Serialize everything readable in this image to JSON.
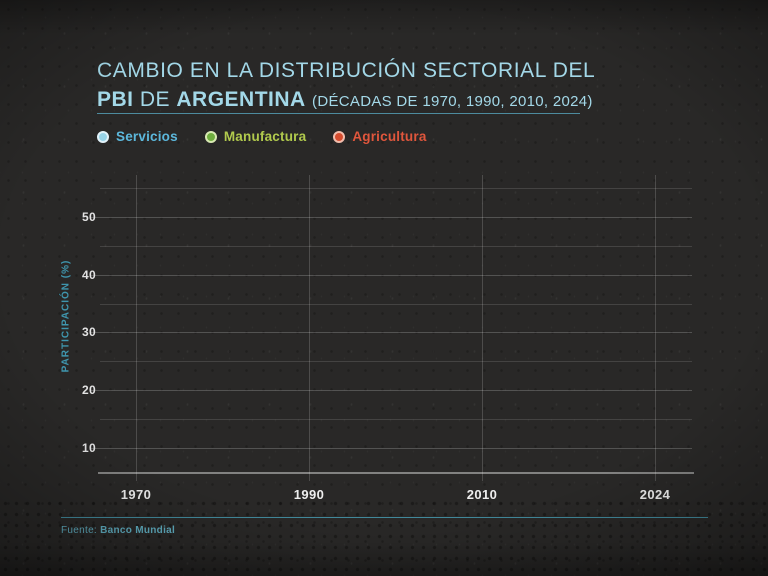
{
  "page": {
    "background": "#292827"
  },
  "title": {
    "line1": "CAMBIO EN LA DISTRIBUCIÓN SECTORIAL DEL",
    "bold1": "PBI",
    "mid": " DE ",
    "bold2": "ARGENTINA",
    "subtitle": "(DÉCADAS DE 1970, 1990, 2010, 2024)",
    "color": "#a3d8e8",
    "underline_color": "#4d8b9e"
  },
  "legend": {
    "items": [
      {
        "label": "Servicios",
        "text_color": "#5cb8dc",
        "dot_fill": "#97d4e8",
        "dot_ring": "#e2f3fa"
      },
      {
        "label": "Manufactura",
        "text_color": "#b1ca4d",
        "dot_fill": "#6fae3e",
        "dot_ring": "#d8e9b2"
      },
      {
        "label": "Agricultura",
        "text_color": "#e0563c",
        "dot_fill": "#d64c2e",
        "dot_ring": "#f2bcab"
      }
    ]
  },
  "chart_data": {
    "type": "line",
    "title": "CAMBIO EN LA DISTRIBUCIÓN SECTORIAL DEL PBI DE ARGENTINA (DÉCADAS DE 1970, 1990, 2010, 2024)",
    "categories": [
      "1970",
      "1990",
      "2010",
      "2024"
    ],
    "series": [
      {
        "name": "Servicios",
        "color": "#97d4e8",
        "values": []
      },
      {
        "name": "Manufactura",
        "color": "#6fae3e",
        "values": []
      },
      {
        "name": "Agricultura",
        "color": "#d64c2e",
        "values": []
      }
    ],
    "plot_empty": true,
    "xlabel": "",
    "ylabel": "PARTICIPACIÓN (%)",
    "y_ticks": [
      10,
      20,
      30,
      40,
      50
    ],
    "y_gridline_step": 5,
    "ylim": [
      5.5,
      57.5
    ],
    "grid": true,
    "legend_position": "top",
    "ylabel_color": "#3f96ae"
  },
  "footer": {
    "prefix": "Fuente: ",
    "source": "Banco Mundial",
    "line_color": "#41889a",
    "text_color": "#5fadc0"
  }
}
